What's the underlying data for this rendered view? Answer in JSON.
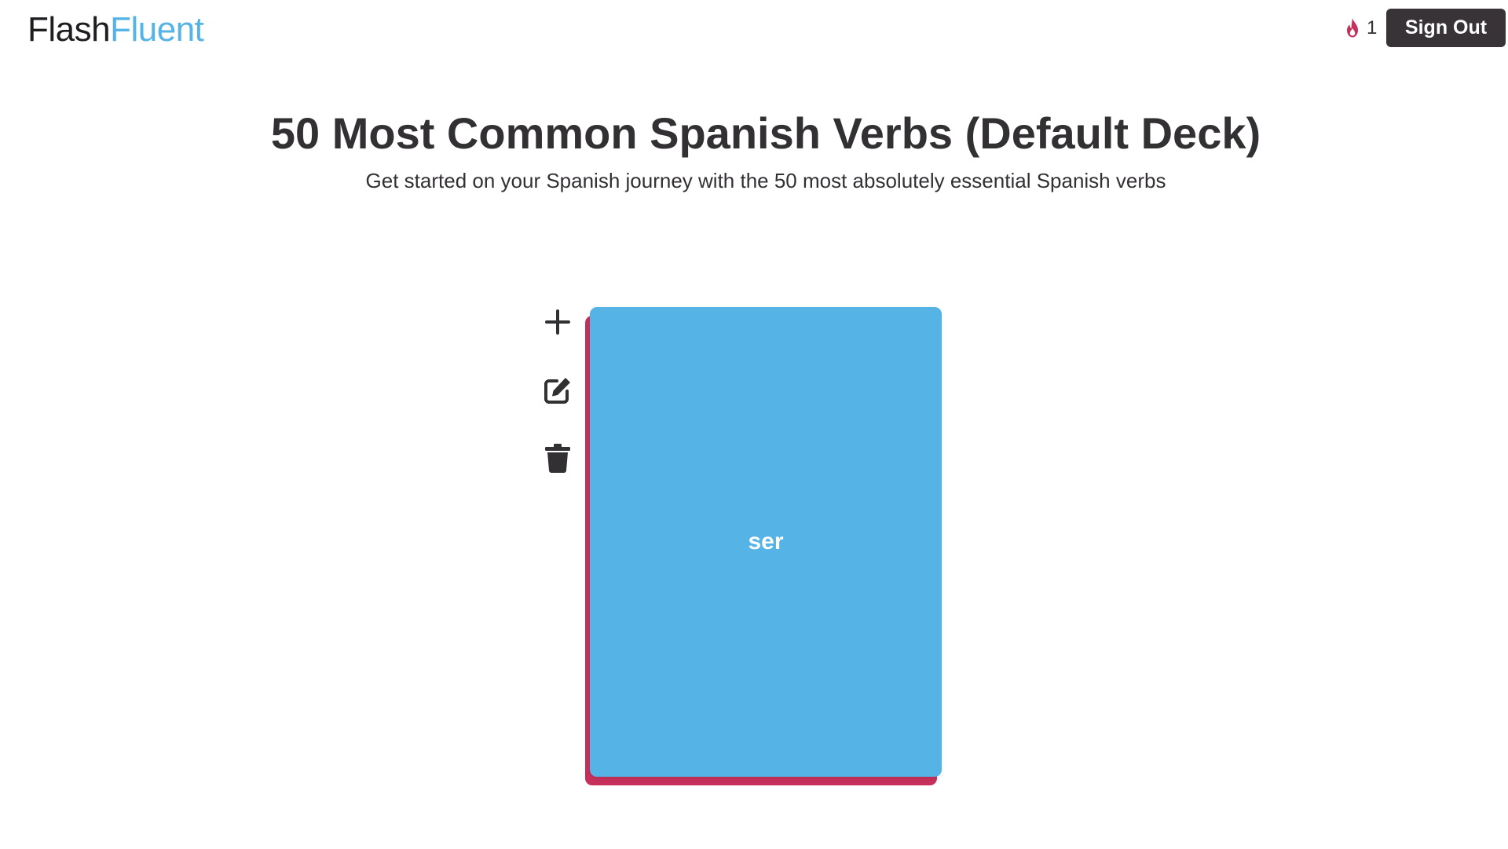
{
  "header": {
    "logo": {
      "part1": "Flash",
      "part2": "Fluent"
    },
    "streak": {
      "icon": "flame-icon",
      "count": "1"
    },
    "sign_out_label": "Sign Out"
  },
  "deck": {
    "title": "50 Most Common Spanish Verbs (Default Deck)",
    "subtitle": "Get started on your Spanish journey with the 50 most absolutely essential Spanish verbs"
  },
  "actions": [
    {
      "icon": "plus-icon"
    },
    {
      "icon": "edit-icon"
    },
    {
      "icon": "trash-icon"
    }
  ],
  "card": {
    "front_text": "ser"
  },
  "colors": {
    "accent_blue": "#55b3e6",
    "accent_red": "#c5315b",
    "dark": "#373337"
  }
}
